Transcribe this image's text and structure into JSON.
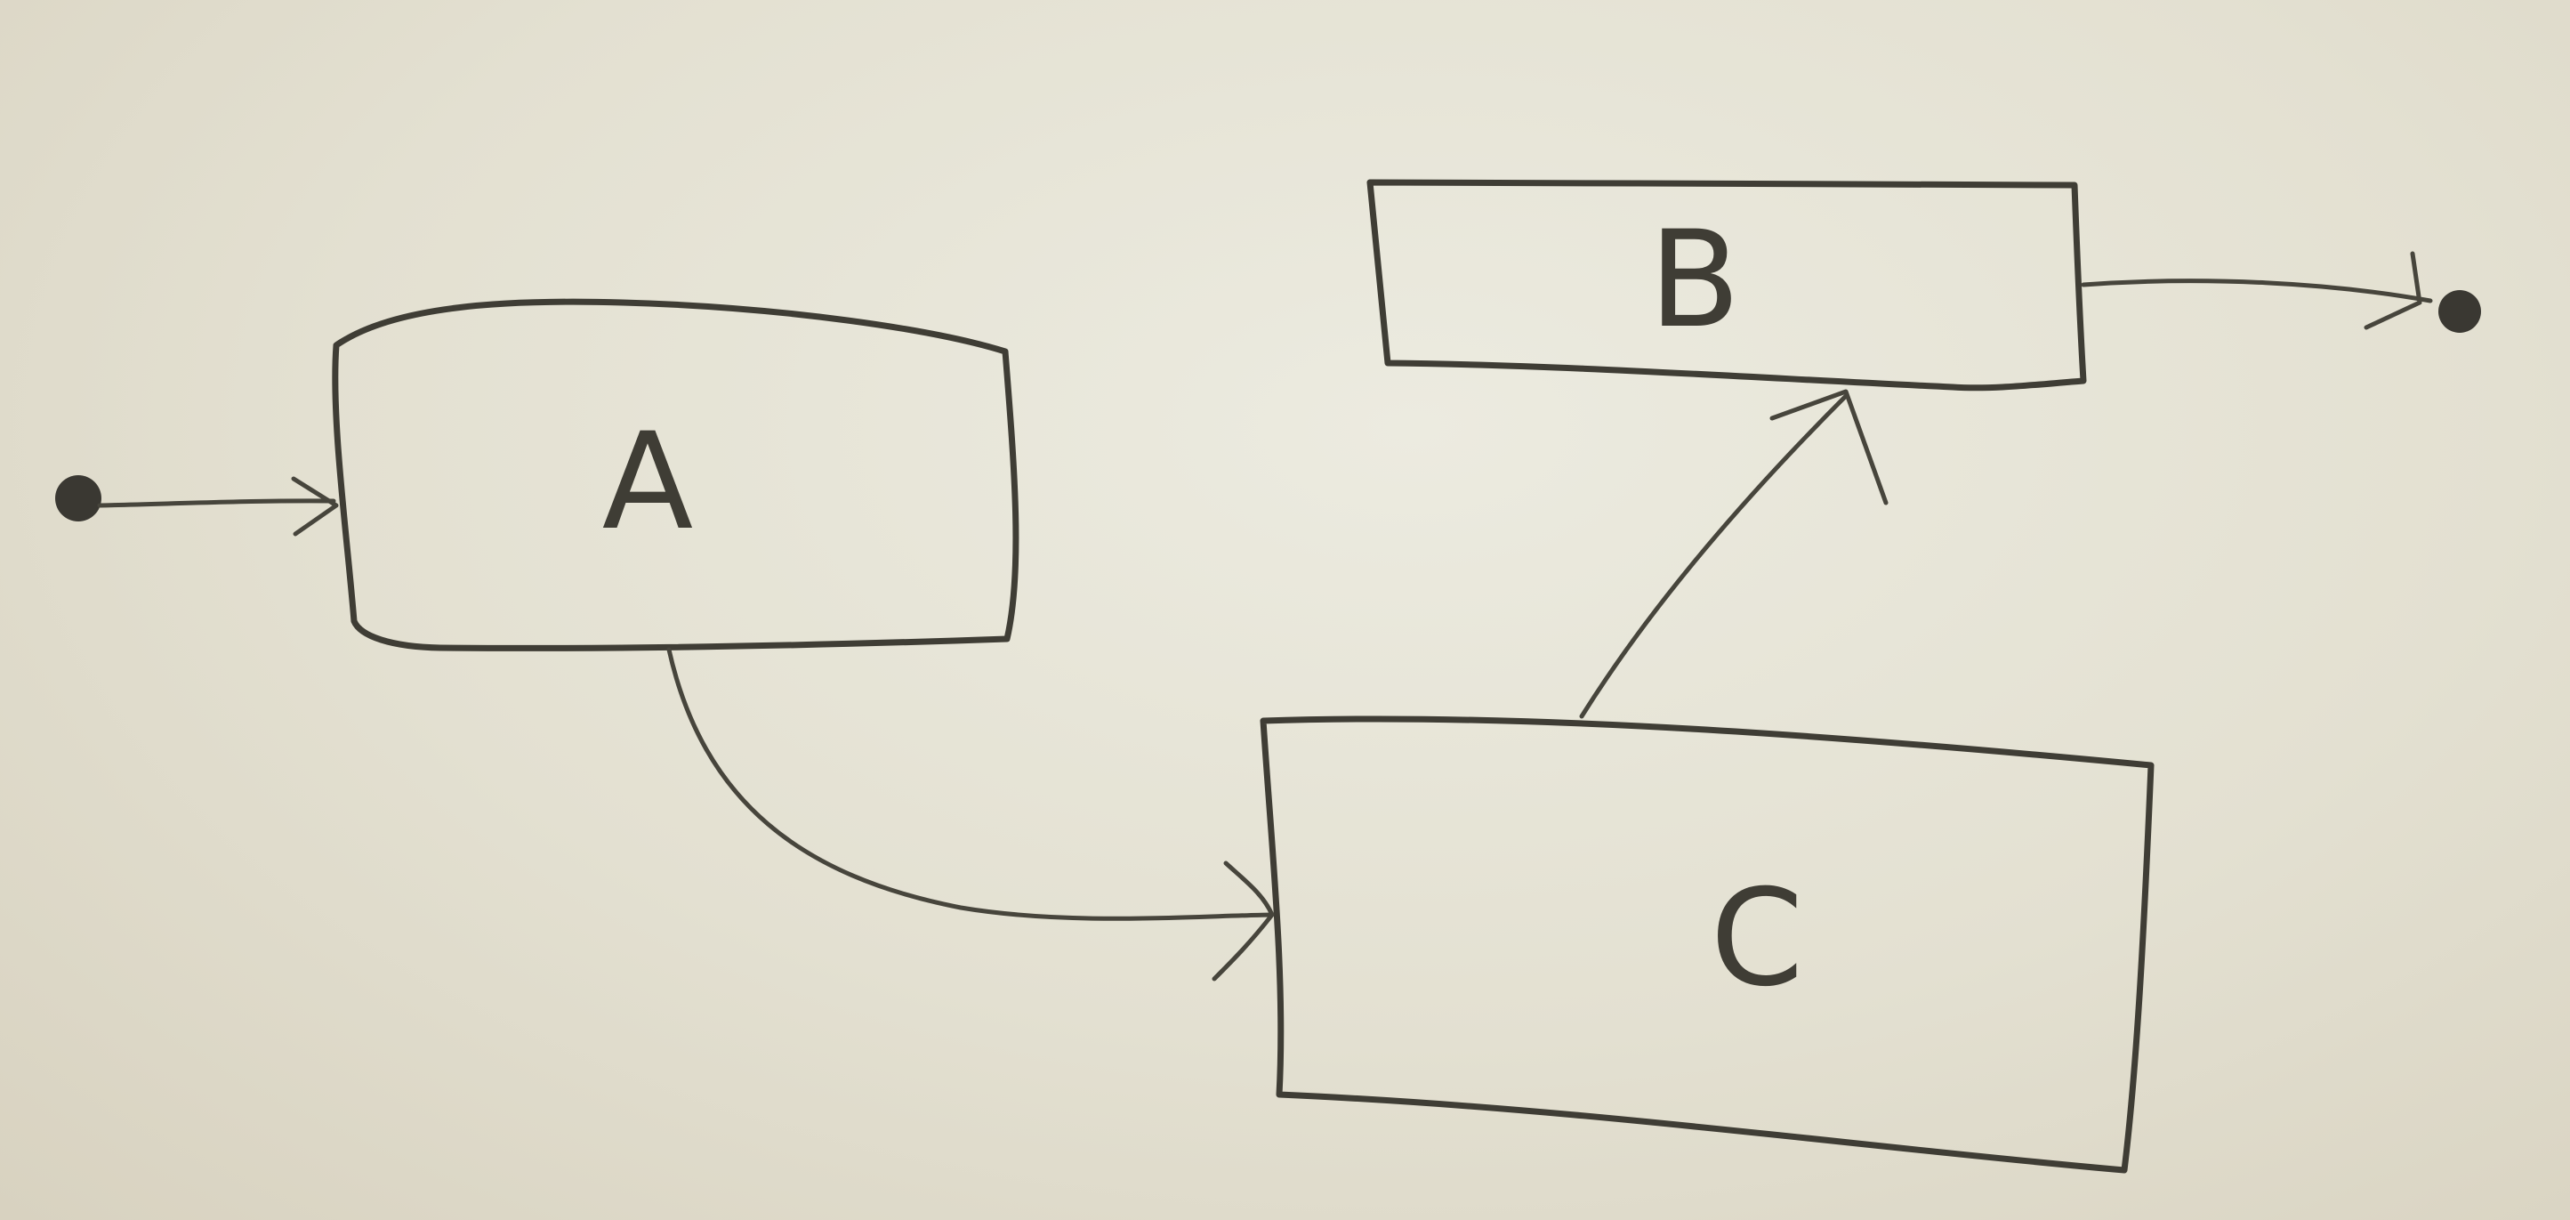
{
  "diagram": {
    "nodes": [
      {
        "id": "A",
        "label": "A"
      },
      {
        "id": "B",
        "label": "B"
      },
      {
        "id": "C",
        "label": "C"
      }
    ],
    "edges": [
      {
        "from": "start",
        "to": "A"
      },
      {
        "from": "A",
        "to": "C"
      },
      {
        "from": "C",
        "to": "B"
      },
      {
        "from": "B",
        "to": "end"
      }
    ]
  }
}
